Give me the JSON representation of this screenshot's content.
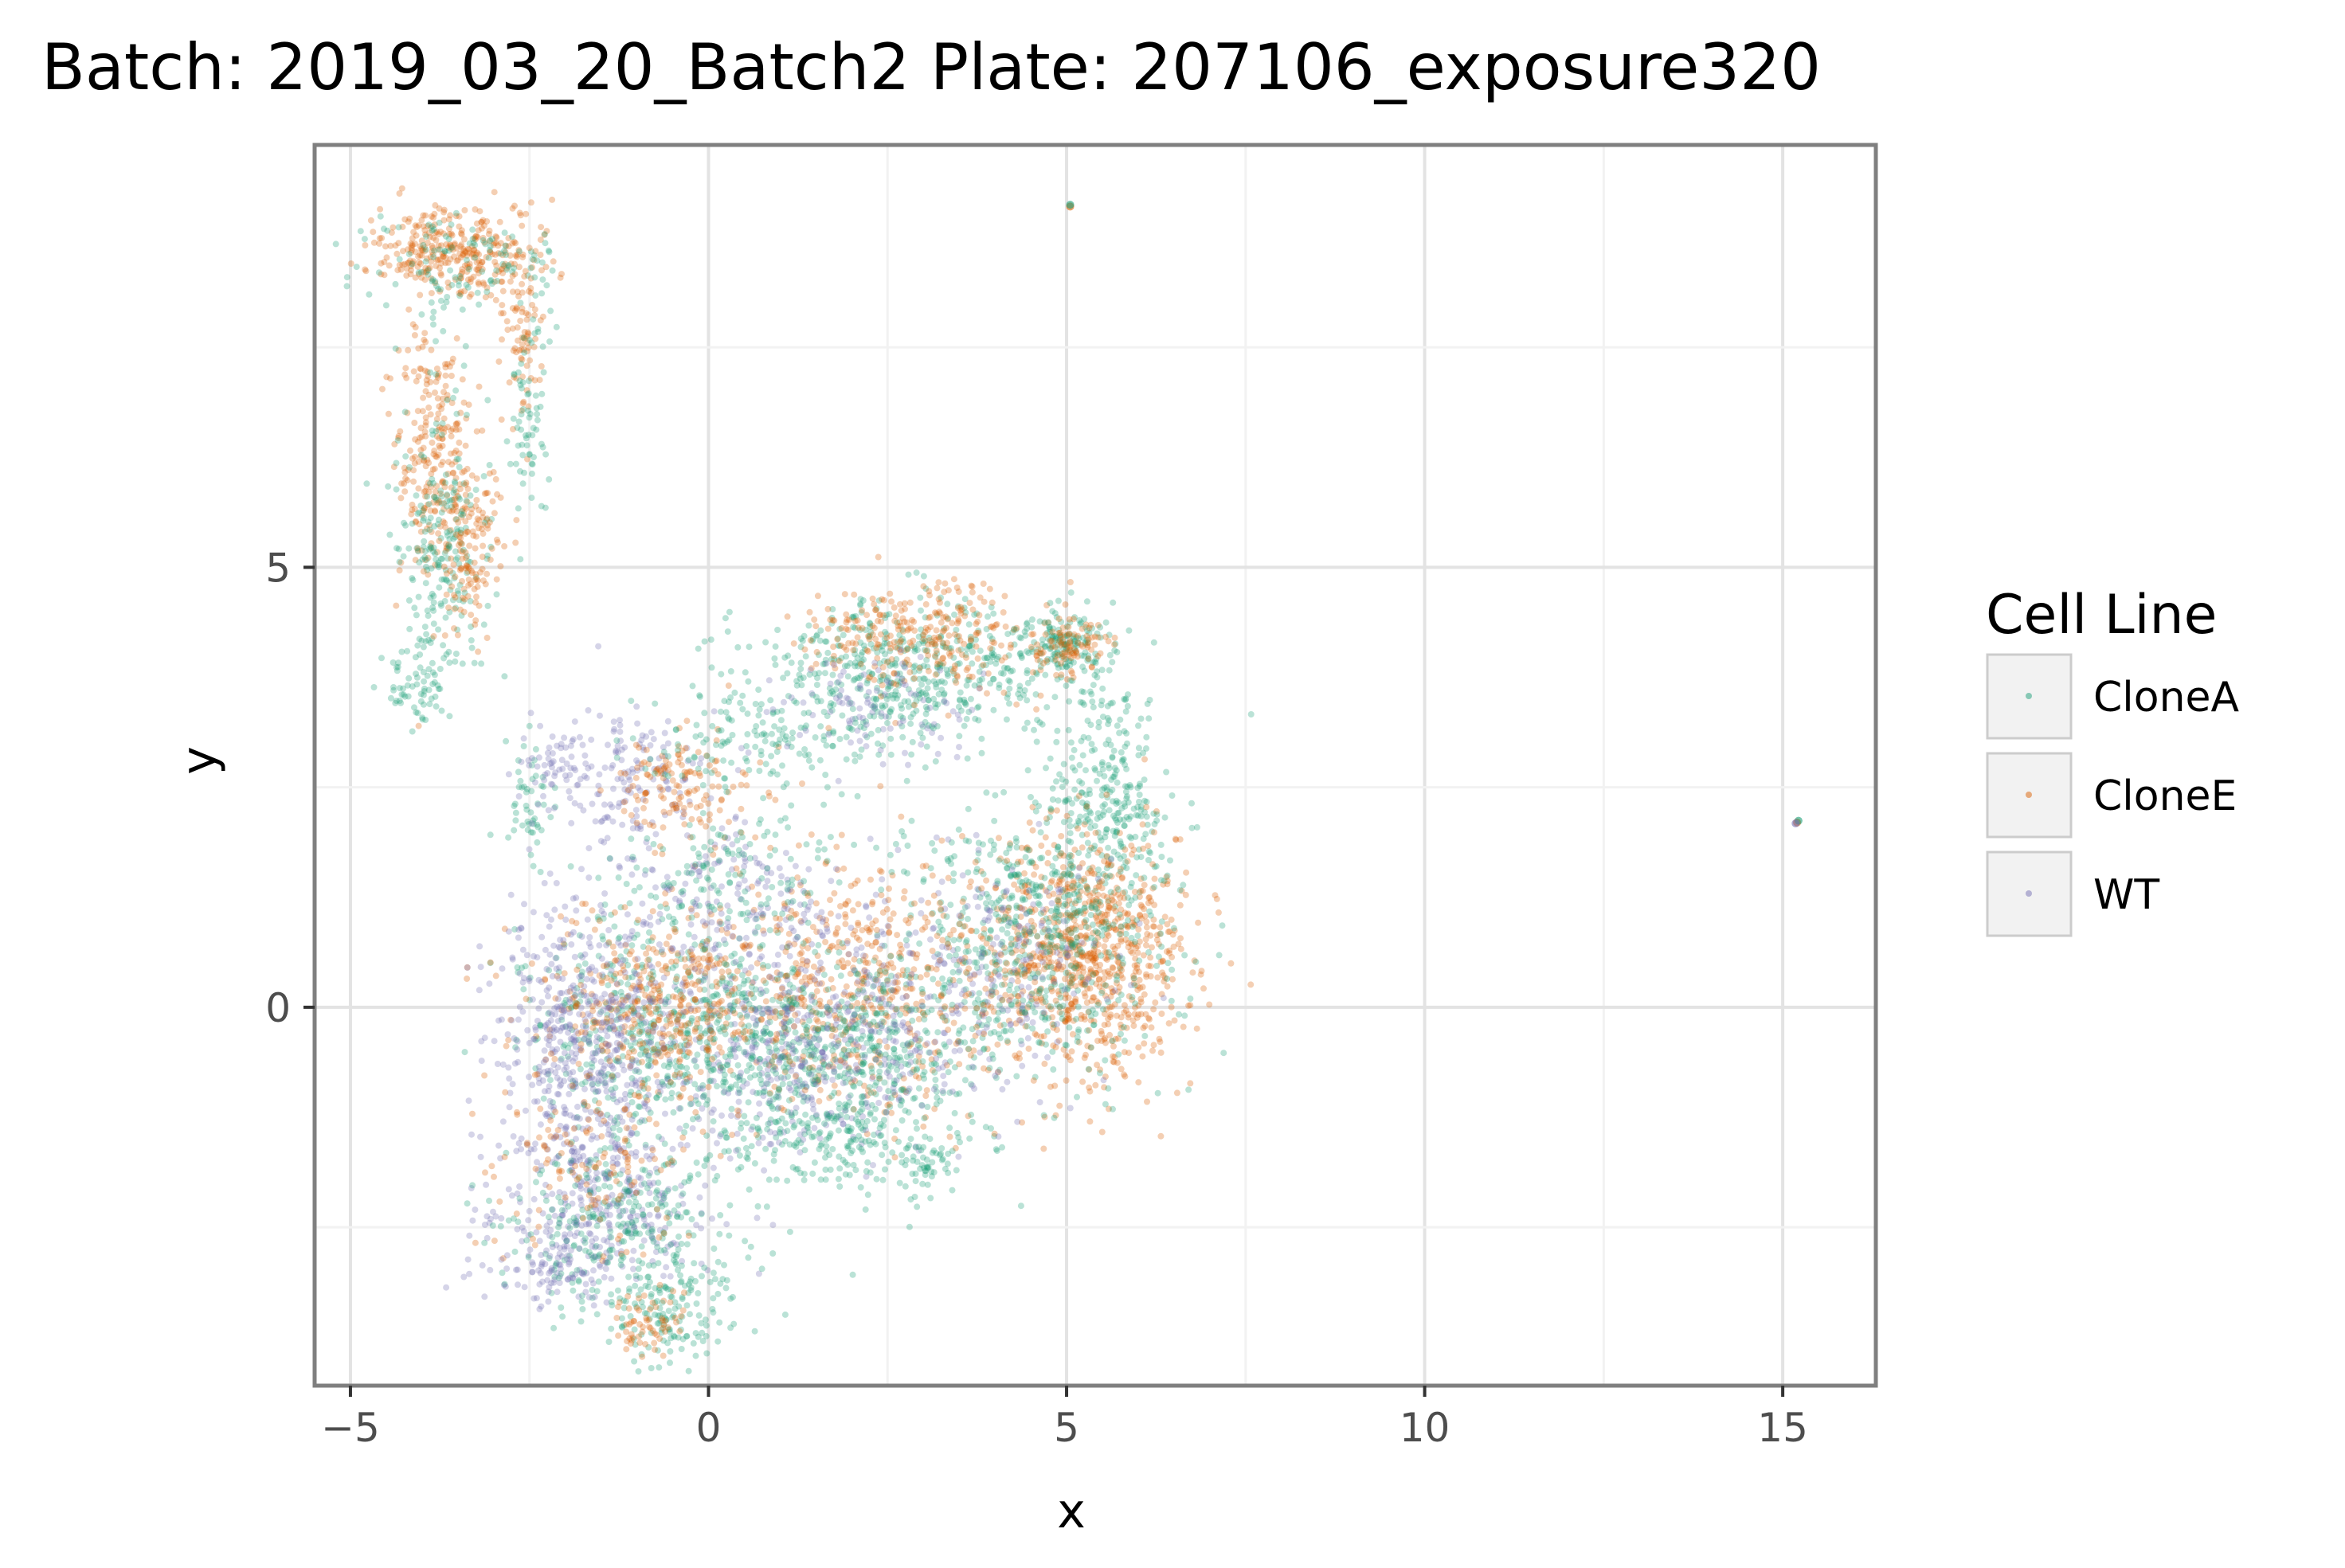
{
  "chart_data": {
    "type": "scatter",
    "title": "Batch: 2019_03_20_Batch2 Plate: 207106_exposure320",
    "xlabel": "x",
    "ylabel": "y",
    "xlim": [
      -5.5,
      16.3
    ],
    "ylim": [
      -4.3,
      9.8
    ],
    "x_ticks": [
      -5,
      0,
      5,
      10,
      15
    ],
    "x_tick_labels": [
      "−5",
      "0",
      "5",
      "10",
      "15"
    ],
    "y_ticks": [
      0,
      5
    ],
    "y_tick_labels": [
      "0",
      "5"
    ],
    "grid": true,
    "legend": {
      "title": "Cell Line",
      "placement": "right",
      "entries": [
        "CloneA",
        "CloneE",
        "WT"
      ]
    },
    "series": [
      {
        "name": "CloneA",
        "color": "#1b9e77"
      },
      {
        "name": "CloneE",
        "color": "#d95f02"
      },
      {
        "name": "WT",
        "color": "#7570b3"
      }
    ],
    "clusters": [
      {
        "series": "CloneE",
        "cx": -3.5,
        "cy": 8.6,
        "sx": 0.6,
        "sy": 0.25,
        "n": 320
      },
      {
        "series": "CloneA",
        "cx": -3.5,
        "cy": 8.4,
        "sx": 0.7,
        "sy": 0.3,
        "n": 120
      },
      {
        "series": "CloneE",
        "cx": -2.6,
        "cy": 7.8,
        "sx": 0.15,
        "sy": 0.5,
        "n": 80
      },
      {
        "series": "CloneA",
        "cx": -2.5,
        "cy": 7.0,
        "sx": 0.15,
        "sy": 0.6,
        "n": 70
      },
      {
        "series": "CloneE",
        "cx": -3.8,
        "cy": 6.3,
        "sx": 0.3,
        "sy": 0.7,
        "n": 260
      },
      {
        "series": "CloneA",
        "cx": -3.7,
        "cy": 5.3,
        "sx": 0.35,
        "sy": 0.9,
        "n": 230
      },
      {
        "series": "CloneE",
        "cx": -3.3,
        "cy": 5.2,
        "sx": 0.25,
        "sy": 0.5,
        "n": 120
      },
      {
        "series": "CloneA",
        "cx": -4.0,
        "cy": 3.7,
        "sx": 0.25,
        "sy": 0.25,
        "n": 60
      },
      {
        "series": "CloneA",
        "cx": -2.5,
        "cy": 2.3,
        "sx": 0.15,
        "sy": 0.4,
        "n": 50
      },
      {
        "series": "WT",
        "cx": -2.3,
        "cy": 2.8,
        "sx": 0.25,
        "sy": 0.25,
        "n": 40
      },
      {
        "series": "WT",
        "cx": -1.2,
        "cy": 2.6,
        "sx": 0.6,
        "sy": 0.4,
        "n": 160
      },
      {
        "series": "CloneE",
        "cx": -0.4,
        "cy": 2.5,
        "sx": 0.5,
        "sy": 0.3,
        "n": 140
      },
      {
        "series": "CloneA",
        "cx": 0.8,
        "cy": 3.0,
        "sx": 0.9,
        "sy": 0.3,
        "n": 160
      },
      {
        "series": "CloneA",
        "cx": 2.8,
        "cy": 3.8,
        "sx": 1.2,
        "sy": 0.4,
        "n": 520
      },
      {
        "series": "CloneE",
        "cx": 3.0,
        "cy": 4.2,
        "sx": 0.8,
        "sy": 0.3,
        "n": 280
      },
      {
        "series": "WT",
        "cx": 2.3,
        "cy": 3.4,
        "sx": 0.8,
        "sy": 0.3,
        "n": 100
      },
      {
        "series": "CloneA",
        "cx": 5.0,
        "cy": 4.1,
        "sx": 0.3,
        "sy": 0.2,
        "n": 140
      },
      {
        "series": "CloneE",
        "cx": 5.0,
        "cy": 4.1,
        "sx": 0.25,
        "sy": 0.15,
        "n": 90
      },
      {
        "series": "CloneA",
        "cx": 5.6,
        "cy": 2.4,
        "sx": 0.4,
        "sy": 0.6,
        "n": 250
      },
      {
        "series": "CloneE",
        "cx": 5.3,
        "cy": 0.6,
        "sx": 0.7,
        "sy": 0.7,
        "n": 850
      },
      {
        "series": "CloneA",
        "cx": 4.6,
        "cy": 0.8,
        "sx": 0.9,
        "sy": 0.8,
        "n": 620
      },
      {
        "series": "WT",
        "cx": 4.2,
        "cy": 0.6,
        "sx": 0.7,
        "sy": 0.6,
        "n": 160
      },
      {
        "series": "CloneE",
        "cx": 2.2,
        "cy": 0.2,
        "sx": 1.0,
        "sy": 0.7,
        "n": 520
      },
      {
        "series": "CloneA",
        "cx": 1.5,
        "cy": -0.5,
        "sx": 1.1,
        "sy": 0.6,
        "n": 700
      },
      {
        "series": "WT",
        "cx": 1.5,
        "cy": -0.4,
        "sx": 1.2,
        "sy": 0.6,
        "n": 500
      },
      {
        "series": "CloneA",
        "cx": -0.8,
        "cy": -0.2,
        "sx": 0.9,
        "sy": 0.7,
        "n": 450
      },
      {
        "series": "CloneE",
        "cx": -0.6,
        "cy": 0.1,
        "sx": 0.9,
        "sy": 0.5,
        "n": 420
      },
      {
        "series": "WT",
        "cx": -1.8,
        "cy": -0.3,
        "sx": 0.6,
        "sy": 0.7,
        "n": 480
      },
      {
        "series": "WT",
        "cx": -1.4,
        "cy": -2.2,
        "sx": 0.8,
        "sy": 0.5,
        "n": 320
      },
      {
        "series": "CloneA",
        "cx": -1.1,
        "cy": -2.6,
        "sx": 0.8,
        "sy": 0.5,
        "n": 320
      },
      {
        "series": "CloneE",
        "cx": -1.6,
        "cy": -1.8,
        "sx": 0.7,
        "sy": 0.6,
        "n": 140
      },
      {
        "series": "CloneA",
        "cx": -0.5,
        "cy": -3.5,
        "sx": 0.4,
        "sy": 0.3,
        "n": 110
      },
      {
        "series": "CloneE",
        "cx": -0.8,
        "cy": -3.6,
        "sx": 0.3,
        "sy": 0.2,
        "n": 60
      },
      {
        "series": "WT",
        "cx": -2.2,
        "cy": -3.0,
        "sx": 0.5,
        "sy": 0.2,
        "n": 90
      },
      {
        "series": "CloneA",
        "cx": 2.0,
        "cy": -1.5,
        "sx": 0.8,
        "sy": 0.3,
        "n": 150
      },
      {
        "series": "CloneA",
        "cx": 3.0,
        "cy": -1.8,
        "sx": 0.2,
        "sy": 0.15,
        "n": 40
      },
      {
        "series": "WT",
        "cx": 0.5,
        "cy": 1.2,
        "sx": 1.0,
        "sy": 0.4,
        "n": 180
      },
      {
        "series": "CloneA",
        "cx": 0.2,
        "cy": 1.5,
        "sx": 0.8,
        "sy": 0.3,
        "n": 120
      }
    ],
    "outliers": [
      {
        "series": "CloneE",
        "x": 5.05,
        "y": 9.1
      },
      {
        "series": "CloneA",
        "x": 5.05,
        "y": 9.12
      },
      {
        "series": "CloneE",
        "x": 15.2,
        "y": 2.1
      },
      {
        "series": "CloneA",
        "x": 15.22,
        "y": 2.12
      },
      {
        "series": "WT",
        "x": 15.18,
        "y": 2.09
      }
    ]
  }
}
